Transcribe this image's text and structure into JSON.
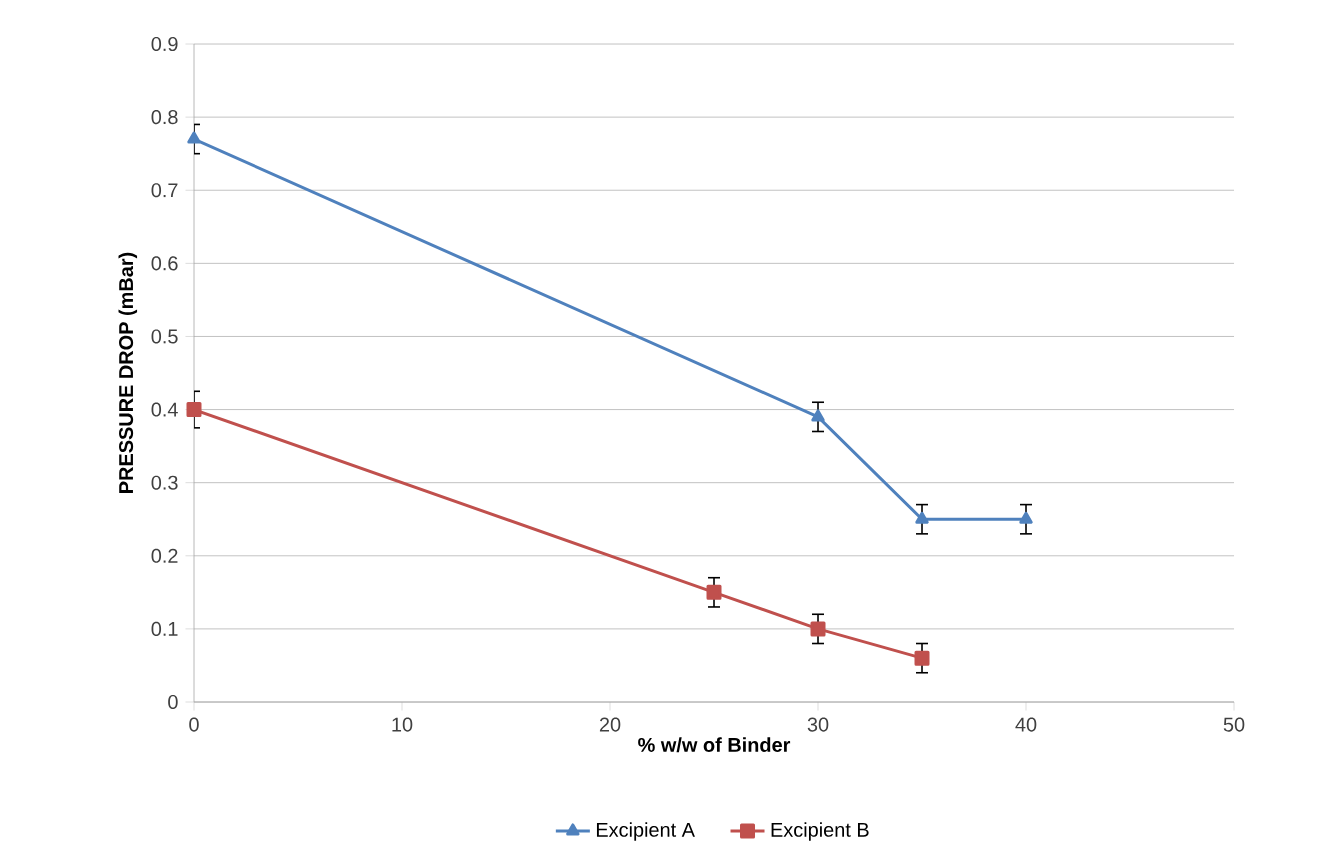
{
  "chart_data": {
    "type": "line",
    "xlabel": "% w/w of Binder",
    "ylabel": "PRESSURE DROP (mBar)",
    "xlim": [
      0,
      50
    ],
    "xticks": [
      0,
      10,
      20,
      30,
      40,
      50
    ],
    "ylim": [
      0,
      0.9
    ],
    "yticks": [
      0,
      0.1,
      0.2,
      0.3,
      0.4,
      0.5,
      0.6,
      0.7,
      0.8,
      0.9
    ],
    "grid": "y",
    "legend": "bottom",
    "series": [
      {
        "name": "Excipient A",
        "color": "#4f81bd",
        "marker": "triangle",
        "x": [
          0,
          30,
          35,
          40
        ],
        "values": [
          0.77,
          0.39,
          0.25,
          0.25
        ],
        "errors": [
          0.02,
          0.02,
          0.02,
          0.02
        ]
      },
      {
        "name": "Excipient B",
        "color": "#c0504d",
        "marker": "square",
        "x": [
          0,
          25,
          30,
          35
        ],
        "values": [
          0.4,
          0.15,
          0.1,
          0.06
        ],
        "errors": [
          0.025,
          0.02,
          0.02,
          0.02
        ]
      }
    ]
  }
}
